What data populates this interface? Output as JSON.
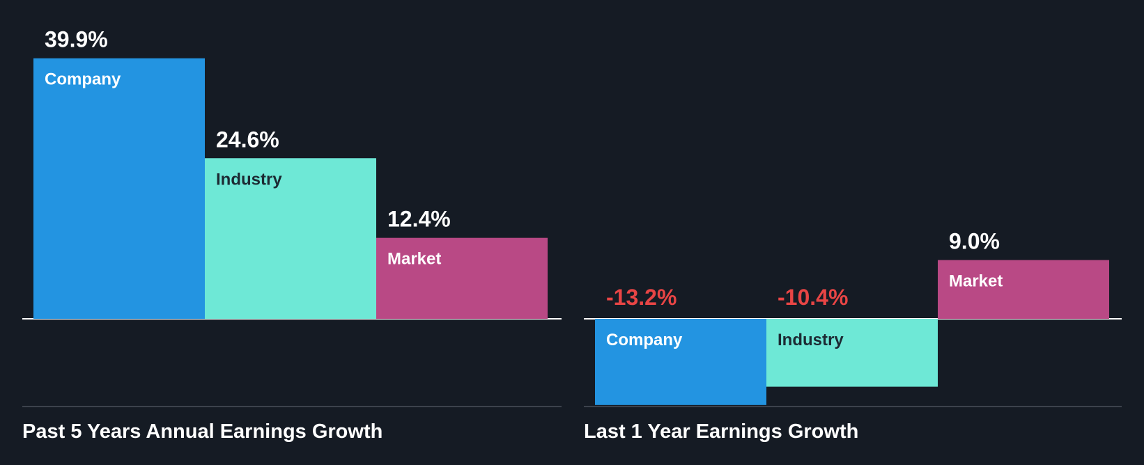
{
  "colors": {
    "background": "#151b24",
    "company": "#2394e1",
    "industry": "#6ee8d6",
    "market": "#b94985",
    "positive_value": "#ffffff",
    "negative_value": "#e84545"
  },
  "chart_data": [
    {
      "type": "bar",
      "title": "Past 5 Years Annual Earnings Growth",
      "categories": [
        "Company",
        "Industry",
        "Market"
      ],
      "values": [
        39.9,
        24.6,
        12.4
      ],
      "value_labels": [
        "39.9%",
        "24.6%",
        "12.4%"
      ],
      "unit": "%",
      "grid": false,
      "legend": "none"
    },
    {
      "type": "bar",
      "title": "Last 1 Year Earnings Growth",
      "categories": [
        "Company",
        "Industry",
        "Market"
      ],
      "values": [
        -13.2,
        -10.4,
        9.0
      ],
      "value_labels": [
        "-13.2%",
        "-10.4%",
        "9.0%"
      ],
      "unit": "%",
      "grid": false,
      "legend": "none"
    }
  ]
}
